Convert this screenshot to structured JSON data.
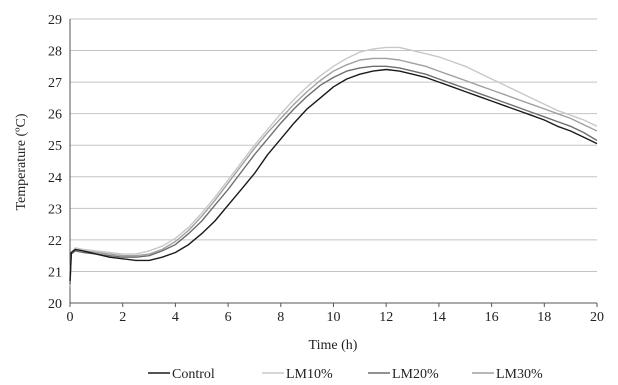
{
  "chart_data": {
    "type": "line",
    "title": "",
    "xlabel": "Time (h)",
    "ylabel": "Temperature (ºC)",
    "xlim": [
      0,
      20
    ],
    "ylim": [
      20,
      29
    ],
    "x_ticks": [
      "0",
      "2",
      "4",
      "6",
      "8",
      "10",
      "12",
      "14",
      "16",
      "18",
      "20"
    ],
    "y_ticks": [
      "20",
      "21",
      "22",
      "23",
      "24",
      "25",
      "26",
      "27",
      "28",
      "29"
    ],
    "grid": "horizontal",
    "legend_position": "bottom",
    "series": [
      {
        "name": "Control",
        "color": "#1a1a1a",
        "x": [
          0,
          0.05,
          0.2,
          0.5,
          1,
          1.5,
          2,
          2.5,
          3,
          3.5,
          4,
          4.5,
          5,
          5.5,
          6,
          6.5,
          7,
          7.5,
          8,
          8.5,
          9,
          9.5,
          10,
          10.5,
          11,
          11.5,
          12,
          12.5,
          13,
          13.5,
          14,
          14.5,
          15,
          15.5,
          16,
          16.5,
          17,
          17.5,
          18,
          18.5,
          19,
          19.5,
          20
        ],
        "y": [
          20.7,
          21.6,
          21.7,
          21.65,
          21.55,
          21.45,
          21.4,
          21.35,
          21.35,
          21.45,
          21.6,
          21.85,
          22.2,
          22.6,
          23.1,
          23.6,
          24.1,
          24.7,
          25.2,
          25.7,
          26.15,
          26.5,
          26.85,
          27.1,
          27.25,
          27.35,
          27.4,
          27.35,
          27.25,
          27.15,
          27.0,
          26.85,
          26.7,
          26.55,
          26.4,
          26.25,
          26.1,
          25.95,
          25.8,
          25.6,
          25.45,
          25.25,
          25.05
        ]
      },
      {
        "name": "LM10%",
        "color": "#c8c8c8",
        "x": [
          0,
          0.05,
          0.2,
          0.5,
          1,
          1.5,
          2,
          2.5,
          3,
          3.5,
          4,
          4.5,
          5,
          5.5,
          6,
          6.5,
          7,
          7.5,
          8,
          8.5,
          9,
          9.5,
          10,
          10.5,
          11,
          11.5,
          12,
          12.5,
          13,
          13.5,
          14,
          14.5,
          15,
          15.5,
          16,
          16.5,
          17,
          17.5,
          18,
          18.5,
          19,
          19.5,
          20
        ],
        "y": [
          20.9,
          21.6,
          21.75,
          21.7,
          21.65,
          21.6,
          21.55,
          21.55,
          21.65,
          21.8,
          22.05,
          22.4,
          22.85,
          23.35,
          23.9,
          24.45,
          25.0,
          25.5,
          26.0,
          26.45,
          26.85,
          27.2,
          27.5,
          27.75,
          27.95,
          28.05,
          28.1,
          28.1,
          28.0,
          27.9,
          27.8,
          27.65,
          27.5,
          27.3,
          27.1,
          26.9,
          26.7,
          26.5,
          26.3,
          26.1,
          25.95,
          25.8,
          25.6
        ]
      },
      {
        "name": "LM20%",
        "color": "#6e6e6e",
        "x": [
          0,
          0.05,
          0.2,
          0.5,
          1,
          1.5,
          2,
          2.5,
          3,
          3.5,
          4,
          4.5,
          5,
          5.5,
          6,
          6.5,
          7,
          7.5,
          8,
          8.5,
          9,
          9.5,
          10,
          10.5,
          11,
          11.5,
          12,
          12.5,
          13,
          13.5,
          14,
          14.5,
          15,
          15.5,
          16,
          16.5,
          17,
          17.5,
          18,
          18.5,
          19,
          19.5,
          20
        ],
        "y": [
          20.6,
          21.55,
          21.65,
          21.6,
          21.55,
          21.5,
          21.45,
          21.45,
          21.5,
          21.65,
          21.85,
          22.2,
          22.6,
          23.1,
          23.6,
          24.15,
          24.7,
          25.2,
          25.7,
          26.15,
          26.55,
          26.9,
          27.15,
          27.35,
          27.45,
          27.5,
          27.5,
          27.45,
          27.35,
          27.25,
          27.1,
          26.95,
          26.8,
          26.65,
          26.5,
          26.35,
          26.2,
          26.05,
          25.9,
          25.75,
          25.6,
          25.4,
          25.15
        ]
      },
      {
        "name": "LM30%",
        "color": "#a0a0a0",
        "x": [
          0,
          0.05,
          0.2,
          0.5,
          1,
          1.5,
          2,
          2.5,
          3,
          3.5,
          4,
          4.5,
          5,
          5.5,
          6,
          6.5,
          7,
          7.5,
          8,
          8.5,
          9,
          9.5,
          10,
          10.5,
          11,
          11.5,
          12,
          12.5,
          13,
          13.5,
          14,
          14.5,
          15,
          15.5,
          16,
          16.5,
          17,
          17.5,
          18,
          18.5,
          19,
          19.5,
          20
        ],
        "y": [
          20.5,
          21.6,
          21.7,
          21.65,
          21.6,
          21.55,
          21.5,
          21.5,
          21.55,
          21.7,
          21.95,
          22.3,
          22.75,
          23.25,
          23.8,
          24.35,
          24.9,
          25.4,
          25.85,
          26.3,
          26.7,
          27.05,
          27.35,
          27.55,
          27.7,
          27.75,
          27.75,
          27.7,
          27.6,
          27.5,
          27.35,
          27.2,
          27.05,
          26.9,
          26.75,
          26.6,
          26.45,
          26.3,
          26.15,
          26.0,
          25.85,
          25.65,
          25.45
        ]
      }
    ]
  }
}
